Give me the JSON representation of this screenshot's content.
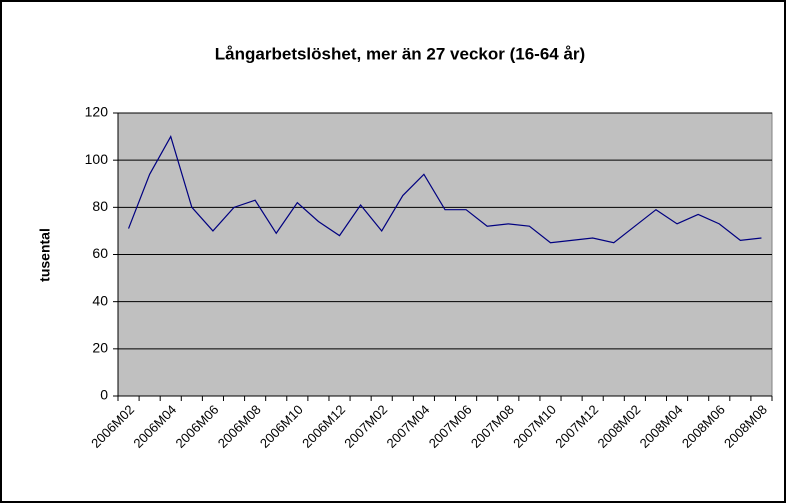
{
  "chart_data": {
    "type": "line",
    "title": "Långarbetslöshet, mer än 27 veckor (16-64 år)",
    "y_label": "tusental",
    "categories": [
      "2006M02",
      null,
      "2006M04",
      null,
      "2006M06",
      null,
      "2006M08",
      null,
      "2006M10",
      null,
      "2006M12",
      null,
      "2007M02",
      null,
      "2007M04",
      null,
      "2007M06",
      null,
      "2007M08",
      null,
      "2007M10",
      null,
      "2007M12",
      null,
      "2008M02",
      null,
      "2008M04",
      null,
      "2008M06",
      null,
      "2008M08"
    ],
    "series": [
      {
        "name": "tusental",
        "color": "#000080",
        "values": [
          71,
          94,
          110,
          80,
          70,
          80,
          83,
          69,
          82,
          74,
          68,
          81,
          70,
          85,
          94,
          79,
          79,
          72,
          73,
          72,
          65,
          66,
          67,
          65,
          72,
          79,
          73,
          77,
          73,
          66,
          67
        ]
      }
    ],
    "ylim": [
      0,
      120
    ],
    "yticks": [
      0,
      20,
      40,
      60,
      80,
      100,
      120
    ],
    "grid": true,
    "plot_background": "#c0c0c0"
  }
}
